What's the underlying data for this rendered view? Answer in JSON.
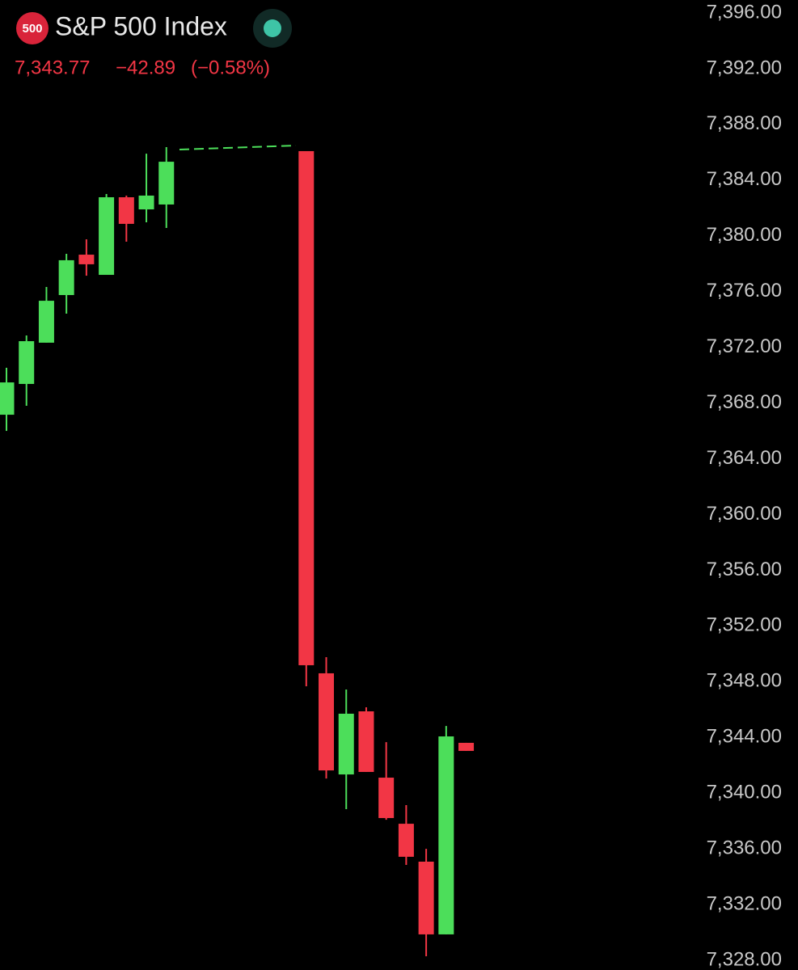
{
  "header": {
    "icon_label": "500",
    "title": "S&P 500 Index",
    "price": "7,343.77",
    "change": "−42.89",
    "change_pct": "(−0.58%)"
  },
  "chart_data": {
    "type": "candlestick",
    "categories": [
      null,
      null,
      null,
      null,
      null,
      null,
      null,
      null,
      null,
      null,
      null,
      null,
      null,
      null,
      null,
      null,
      null,
      null,
      null,
      null,
      null,
      null,
      null,
      null
    ],
    "open": [
      7367.16,
      7369.37,
      7372.33,
      7375.75,
      7378.65,
      7377.2,
      7382.77,
      7381.9,
      7382.25,
      null,
      null,
      null,
      null,
      null,
      null,
      7386.08,
      7348.6,
      7341.34,
      7345.87,
      7341.11,
      7337.8,
      7335.08,
      7329.86,
      7343.61
    ],
    "high": [
      7370.53,
      7372.85,
      7376.33,
      7378.71,
      7379.75,
      7383.0,
      7382.89,
      7385.9,
      7386.37,
      null,
      null,
      null,
      null,
      null,
      null,
      7386.08,
      7349.76,
      7347.44,
      7346.16,
      7343.66,
      7339.14,
      7336.0,
      7344.82,
      7343.61
    ],
    "low": [
      7366.0,
      7367.8,
      7372.33,
      7374.42,
      7377.14,
      7377.2,
      7379.58,
      7380.97,
      7380.57,
      null,
      null,
      null,
      null,
      null,
      null,
      7347.67,
      7341.05,
      7338.85,
      7341.52,
      7338.09,
      7334.85,
      7328.29,
      7329.86,
      7343.03
    ],
    "close": [
      7369.48,
      7372.44,
      7375.34,
      7378.25,
      7377.96,
      7382.77,
      7380.86,
      7382.89,
      7385.32,
      null,
      null,
      null,
      null,
      null,
      null,
      7349.18,
      7341.63,
      7345.7,
      7341.52,
      7338.21,
      7335.43,
      7329.86,
      7344.07,
      7343.03
    ],
    "up_color": "#4cde5a",
    "down_color": "#f23645",
    "ylim": [
      7328,
      7396
    ],
    "yticks": [
      {
        "value": 7396,
        "label": "7,396.00"
      },
      {
        "value": 7392,
        "label": "7,392.00"
      },
      {
        "value": 7388,
        "label": "7,388.00"
      },
      {
        "value": 7384,
        "label": "7,384.00"
      },
      {
        "value": 7380,
        "label": "7,380.00"
      },
      {
        "value": 7376,
        "label": "7,376.00"
      },
      {
        "value": 7372,
        "label": "7,372.00"
      },
      {
        "value": 7368,
        "label": "7,368.00"
      },
      {
        "value": 7364,
        "label": "7,364.00"
      },
      {
        "value": 7360,
        "label": "7,360.00"
      },
      {
        "value": 7356,
        "label": "7,356.00"
      },
      {
        "value": 7352,
        "label": "7,352.00"
      },
      {
        "value": 7348,
        "label": "7,348.00"
      },
      {
        "value": 7344,
        "label": "7,344.00"
      },
      {
        "value": 7340,
        "label": "7,340.00"
      },
      {
        "value": 7336,
        "label": "7,336.00"
      },
      {
        "value": 7332,
        "label": "7,332.00"
      },
      {
        "value": 7328,
        "label": "7,328.00"
      }
    ]
  }
}
